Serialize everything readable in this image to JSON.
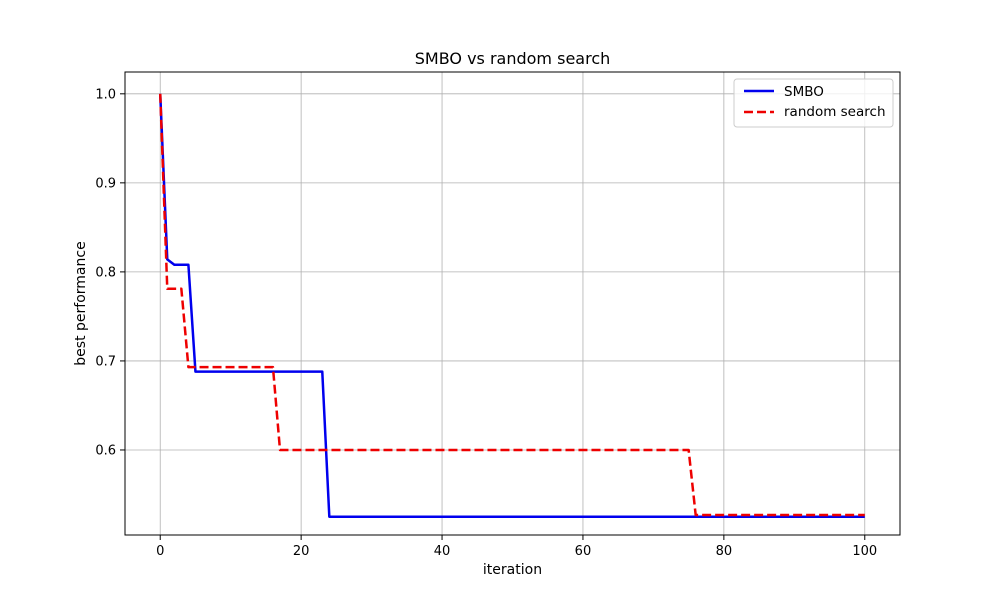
{
  "chart_data": {
    "type": "line",
    "title": "SMBO vs random search",
    "xlabel": "iteration",
    "ylabel": "best performance",
    "xlim": [
      -5,
      105
    ],
    "ylim": [
      0.5045,
      1.0245
    ],
    "xticks": [
      0,
      20,
      40,
      60,
      80,
      100
    ],
    "yticks": [
      0.6,
      0.7,
      0.8,
      0.9,
      1.0
    ],
    "xtick_labels": [
      "0",
      "20",
      "40",
      "60",
      "80",
      "100"
    ],
    "ytick_labels": [
      "0.6",
      "0.7",
      "0.8",
      "0.9",
      "1.0"
    ],
    "grid": true,
    "legend": {
      "position": "top-right"
    },
    "series": [
      {
        "name": "SMBO",
        "color": "#0000ee",
        "style": "solid",
        "x": [
          0,
          1,
          2,
          3,
          4,
          5,
          23,
          24,
          100
        ],
        "y": [
          1.0,
          0.814,
          0.808,
          0.808,
          0.808,
          0.688,
          0.688,
          0.525,
          0.525
        ]
      },
      {
        "name": "random search",
        "color": "#ee0000",
        "style": "dashed",
        "x": [
          0,
          1,
          2,
          3,
          4,
          16,
          17,
          75,
          76,
          100
        ],
        "y": [
          1.0,
          0.781,
          0.781,
          0.781,
          0.693,
          0.693,
          0.6,
          0.6,
          0.527,
          0.527
        ]
      }
    ]
  }
}
